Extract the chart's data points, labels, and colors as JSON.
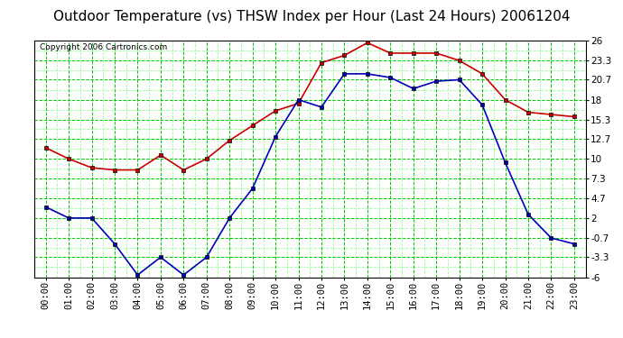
{
  "title": "Outdoor Temperature (vs) THSW Index per Hour (Last 24 Hours) 20061204",
  "copyright": "Copyright 2006 Cartronics.com",
  "hours": [
    "00:00",
    "01:00",
    "02:00",
    "03:00",
    "04:00",
    "05:00",
    "06:00",
    "07:00",
    "08:00",
    "09:00",
    "10:00",
    "11:00",
    "12:00",
    "13:00",
    "14:00",
    "15:00",
    "16:00",
    "17:00",
    "18:00",
    "19:00",
    "20:00",
    "21:00",
    "22:00",
    "23:00"
  ],
  "temp_blue": [
    3.5,
    2.0,
    2.0,
    -1.5,
    -5.7,
    -3.3,
    -5.7,
    -3.3,
    2.0,
    6.0,
    13.0,
    18.0,
    17.0,
    21.5,
    21.5,
    21.0,
    19.5,
    20.5,
    20.7,
    17.3,
    9.5,
    2.5,
    -0.7,
    -1.5
  ],
  "thsw_red": [
    11.5,
    10.0,
    8.8,
    8.5,
    8.5,
    10.5,
    8.5,
    10.0,
    12.5,
    14.5,
    16.5,
    17.5,
    23.0,
    24.0,
    25.7,
    24.3,
    24.3,
    24.3,
    23.3,
    21.5,
    18.0,
    16.3,
    16.0,
    15.7
  ],
  "ylim": [
    -6.0,
    26.0
  ],
  "yticks": [
    -6.0,
    -3.3,
    -0.7,
    2.0,
    4.7,
    7.3,
    10.0,
    12.7,
    15.3,
    18.0,
    20.7,
    23.3,
    26.0
  ],
  "bg_color": "#ffffff",
  "plot_bg_color": "#ffffff",
  "grid_color_major": "#00cc00",
  "grid_color_minor": "#99ff99",
  "line_blue": "#0000bb",
  "line_red": "#cc0000",
  "title_fontsize": 11,
  "tick_fontsize": 7.5,
  "copyright_fontsize": 6.5
}
